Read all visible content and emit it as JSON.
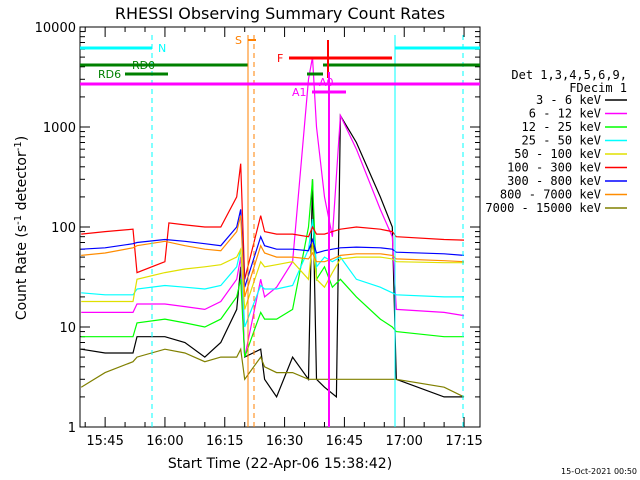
{
  "chart_data": {
    "type": "line",
    "title": "RHESSI Observing Summary Count Rates",
    "xlabel": "Start Time (22-Apr-06 15:38:42)",
    "ylabel_main": "Count Rate (s",
    "ylabel_exp1": "-1",
    "ylabel_mid": " detector",
    "ylabel_exp2": "-1",
    "ylabel_end": ")",
    "footer": "15-Oct-2021 00:50",
    "yscale": "log",
    "ylim": [
      1,
      10000
    ],
    "xlim": [
      "15:38:42",
      "17:19"
    ],
    "x_ticks": [
      "15:45",
      "16:00",
      "16:15",
      "16:30",
      "16:45",
      "17:00",
      "17:15"
    ],
    "y_ticks": [
      "1",
      "10",
      "100",
      "1000",
      "10000"
    ],
    "legend_header": [
      "Det 1,3,4,5,6,9,",
      "FDecim 1"
    ],
    "series": [
      {
        "name": "3 - 6 keV",
        "color": "#000000",
        "points": [
          [
            "15:39",
            6
          ],
          [
            "15:45",
            5.5
          ],
          [
            "15:52",
            5.5
          ],
          [
            "15:53",
            8
          ],
          [
            "16:00",
            8
          ],
          [
            "16:05",
            7
          ],
          [
            "16:10",
            5
          ],
          [
            "16:14",
            7
          ],
          [
            "16:18",
            15
          ],
          [
            "16:19",
            40
          ],
          [
            "16:20",
            5
          ],
          [
            "16:24",
            6
          ],
          [
            "16:25",
            3
          ],
          [
            "16:28",
            2
          ],
          [
            "16:32",
            5
          ],
          [
            "16:36",
            3
          ],
          [
            "16:37",
            300
          ],
          [
            "16:38",
            3
          ],
          [
            "16:40",
            2.5
          ],
          [
            "16:43",
            2
          ],
          [
            "16:44",
            1300
          ],
          [
            "16:48",
            700
          ],
          [
            "16:54",
            200
          ],
          [
            "16:57",
            100
          ],
          [
            "16:58",
            3
          ],
          [
            "17:10",
            2
          ],
          [
            "17:15",
            2
          ]
        ]
      },
      {
        "name": "6 - 12 keV",
        "color": "#ff00ff",
        "points": [
          [
            "15:39",
            14
          ],
          [
            "15:45",
            14
          ],
          [
            "15:52",
            14
          ],
          [
            "15:53",
            17
          ],
          [
            "16:00",
            17
          ],
          [
            "16:05",
            16
          ],
          [
            "16:10",
            15
          ],
          [
            "16:14",
            18
          ],
          [
            "16:18",
            30
          ],
          [
            "16:19",
            50
          ],
          [
            "16:20",
            5
          ],
          [
            "16:24",
            30
          ],
          [
            "16:25",
            20
          ],
          [
            "16:28",
            25
          ],
          [
            "16:32",
            45
          ],
          [
            "16:36",
            3000
          ],
          [
            "16:37",
            5000
          ],
          [
            "16:38",
            1000
          ],
          [
            "16:40",
            200
          ],
          [
            "16:42",
            80
          ],
          [
            "16:44",
            1300
          ],
          [
            "16:48",
            600
          ],
          [
            "16:54",
            150
          ],
          [
            "16:57",
            80
          ],
          [
            "16:58",
            15
          ],
          [
            "17:10",
            14
          ],
          [
            "17:15",
            13
          ]
        ]
      },
      {
        "name": "12 - 25 keV",
        "color": "#00ff00",
        "points": [
          [
            "15:39",
            8
          ],
          [
            "15:45",
            8
          ],
          [
            "15:52",
            8
          ],
          [
            "15:53",
            11
          ],
          [
            "16:00",
            12
          ],
          [
            "16:05",
            11
          ],
          [
            "16:10",
            10
          ],
          [
            "16:14",
            12
          ],
          [
            "16:18",
            20
          ],
          [
            "16:19",
            30
          ],
          [
            "16:20",
            5
          ],
          [
            "16:24",
            14
          ],
          [
            "16:25",
            12
          ],
          [
            "16:28",
            12
          ],
          [
            "16:32",
            15
          ],
          [
            "16:36",
            100
          ],
          [
            "16:37",
            300
          ],
          [
            "16:38",
            30
          ],
          [
            "16:40",
            40
          ],
          [
            "16:42",
            25
          ],
          [
            "16:44",
            30
          ],
          [
            "16:48",
            20
          ],
          [
            "16:54",
            12
          ],
          [
            "16:57",
            10
          ],
          [
            "16:58",
            9
          ],
          [
            "17:10",
            8
          ],
          [
            "17:15",
            8
          ]
        ]
      },
      {
        "name": "25 - 50 keV",
        "color": "#00ffff",
        "points": [
          [
            "15:39",
            22
          ],
          [
            "15:45",
            21
          ],
          [
            "15:52",
            21
          ],
          [
            "15:53",
            24
          ],
          [
            "16:00",
            26
          ],
          [
            "16:05",
            25
          ],
          [
            "16:10",
            24
          ],
          [
            "16:14",
            26
          ],
          [
            "16:18",
            40
          ],
          [
            "16:19",
            60
          ],
          [
            "16:20",
            10
          ],
          [
            "16:24",
            26
          ],
          [
            "16:25",
            24
          ],
          [
            "16:28",
            24
          ],
          [
            "16:32",
            26
          ],
          [
            "16:36",
            60
          ],
          [
            "16:37",
            120
          ],
          [
            "16:38",
            40
          ],
          [
            "16:40",
            50
          ],
          [
            "16:42",
            45
          ],
          [
            "16:44",
            50
          ],
          [
            "16:48",
            30
          ],
          [
            "16:54",
            25
          ],
          [
            "16:57",
            22
          ],
          [
            "16:58",
            21
          ],
          [
            "17:10",
            20
          ],
          [
            "17:15",
            20
          ]
        ]
      },
      {
        "name": "50 - 100 keV",
        "color": "#e0e000",
        "points": [
          [
            "15:39",
            18
          ],
          [
            "15:45",
            18
          ],
          [
            "15:52",
            18
          ],
          [
            "15:53",
            30
          ],
          [
            "16:00",
            35
          ],
          [
            "16:05",
            38
          ],
          [
            "16:10",
            40
          ],
          [
            "16:14",
            42
          ],
          [
            "16:18",
            50
          ],
          [
            "16:19",
            60
          ],
          [
            "16:20",
            15
          ],
          [
            "16:24",
            45
          ],
          [
            "16:25",
            40
          ],
          [
            "16:28",
            42
          ],
          [
            "16:32",
            45
          ],
          [
            "16:36",
            30
          ],
          [
            "16:37",
            70
          ],
          [
            "16:38",
            30
          ],
          [
            "16:40",
            25
          ],
          [
            "16:42",
            35
          ],
          [
            "16:44",
            48
          ],
          [
            "16:48",
            50
          ],
          [
            "16:54",
            50
          ],
          [
            "16:57",
            48
          ],
          [
            "16:58",
            45
          ],
          [
            "17:10",
            44
          ],
          [
            "17:15",
            44
          ]
        ]
      },
      {
        "name": "100 - 300 keV",
        "color": "#ff0000",
        "points": [
          [
            "15:39",
            85
          ],
          [
            "15:45",
            90
          ],
          [
            "15:52",
            95
          ],
          [
            "15:53",
            35
          ],
          [
            "16:00",
            45
          ],
          [
            "16:01",
            110
          ],
          [
            "16:05",
            105
          ],
          [
            "16:10",
            100
          ],
          [
            "16:14",
            100
          ],
          [
            "16:18",
            200
          ],
          [
            "16:19",
            430
          ],
          [
            "16:20",
            30
          ],
          [
            "16:24",
            130
          ],
          [
            "16:25",
            90
          ],
          [
            "16:28",
            85
          ],
          [
            "16:32",
            85
          ],
          [
            "16:36",
            80
          ],
          [
            "16:37",
            100
          ],
          [
            "16:38",
            85
          ],
          [
            "16:40",
            85
          ],
          [
            "16:42",
            90
          ],
          [
            "16:44",
            95
          ],
          [
            "16:48",
            100
          ],
          [
            "16:54",
            95
          ],
          [
            "16:57",
            90
          ],
          [
            "16:58",
            80
          ],
          [
            "17:10",
            75
          ],
          [
            "17:15",
            74
          ]
        ]
      },
      {
        "name": "300 - 800 keV",
        "color": "#0000ff",
        "points": [
          [
            "15:39",
            60
          ],
          [
            "15:45",
            62
          ],
          [
            "15:52",
            68
          ],
          [
            "15:53",
            70
          ],
          [
            "16:00",
            75
          ],
          [
            "16:05",
            72
          ],
          [
            "16:10",
            68
          ],
          [
            "16:14",
            65
          ],
          [
            "16:18",
            100
          ],
          [
            "16:19",
            150
          ],
          [
            "16:20",
            25
          ],
          [
            "16:24",
            80
          ],
          [
            "16:25",
            65
          ],
          [
            "16:28",
            60
          ],
          [
            "16:32",
            60
          ],
          [
            "16:36",
            58
          ],
          [
            "16:37",
            75
          ],
          [
            "16:38",
            55
          ],
          [
            "16:40",
            58
          ],
          [
            "16:42",
            60
          ],
          [
            "16:44",
            62
          ],
          [
            "16:48",
            63
          ],
          [
            "16:54",
            62
          ],
          [
            "16:57",
            60
          ],
          [
            "16:58",
            56
          ],
          [
            "17:10",
            54
          ],
          [
            "17:15",
            52
          ]
        ]
      },
      {
        "name": "800 - 7000 keV",
        "color": "#ff8c00",
        "points": [
          [
            "15:39",
            52
          ],
          [
            "15:45",
            55
          ],
          [
            "15:52",
            62
          ],
          [
            "15:53",
            65
          ],
          [
            "16:00",
            72
          ],
          [
            "16:05",
            65
          ],
          [
            "16:10",
            60
          ],
          [
            "16:14",
            58
          ],
          [
            "16:18",
            90
          ],
          [
            "16:19",
            130
          ],
          [
            "16:20",
            20
          ],
          [
            "16:24",
            65
          ],
          [
            "16:25",
            55
          ],
          [
            "16:28",
            50
          ],
          [
            "16:32",
            50
          ],
          [
            "16:36",
            48
          ],
          [
            "16:37",
            55
          ],
          [
            "16:38",
            45
          ],
          [
            "16:40",
            45
          ],
          [
            "16:42",
            48
          ],
          [
            "16:44",
            52
          ],
          [
            "16:48",
            54
          ],
          [
            "16:54",
            54
          ],
          [
            "16:57",
            52
          ],
          [
            "16:58",
            48
          ],
          [
            "17:10",
            46
          ],
          [
            "17:15",
            45
          ]
        ]
      },
      {
        "name": "7000 - 15000 keV",
        "color": "#808000",
        "points": [
          [
            "15:39",
            2.5
          ],
          [
            "15:45",
            3.5
          ],
          [
            "15:52",
            4.5
          ],
          [
            "15:53",
            5
          ],
          [
            "16:00",
            6
          ],
          [
            "16:05",
            5.5
          ],
          [
            "16:10",
            4.5
          ],
          [
            "16:14",
            5
          ],
          [
            "16:18",
            5
          ],
          [
            "16:19",
            6
          ],
          [
            "16:20",
            3
          ],
          [
            "16:24",
            5
          ],
          [
            "16:25",
            4
          ],
          [
            "16:28",
            3.5
          ],
          [
            "16:32",
            3.5
          ],
          [
            "16:36",
            3
          ],
          [
            "16:37",
            3
          ],
          [
            "16:38",
            3
          ],
          [
            "16:40",
            3
          ],
          [
            "16:42",
            3
          ],
          [
            "16:44",
            3
          ],
          [
            "16:48",
            3
          ],
          [
            "16:54",
            3
          ],
          [
            "16:57",
            3
          ],
          [
            "16:58",
            3
          ],
          [
            "17:10",
            2.5
          ],
          [
            "17:15",
            2
          ]
        ]
      }
    ],
    "flag_labels": {
      "n": "N",
      "rd0": "RD0",
      "rd6": "RD6",
      "s": "S",
      "f": "F",
      "a0": "A0",
      "a1": "A1"
    },
    "flag_colors": {
      "n": "#00ffff",
      "rd": "#008000",
      "s": "#ff8000",
      "f": "#ff0000",
      "a": "#ff00ff"
    }
  }
}
